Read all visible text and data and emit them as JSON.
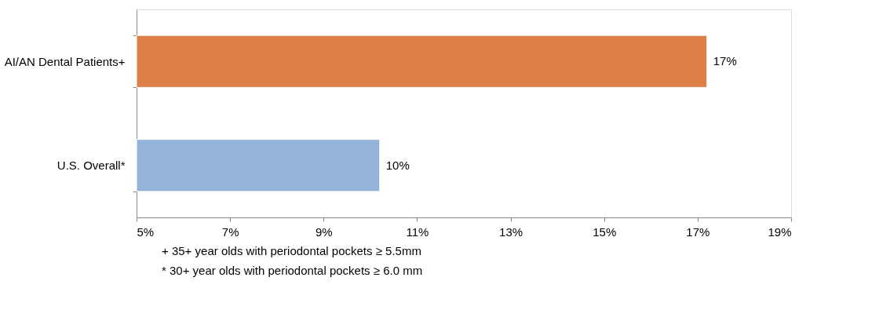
{
  "chart_data": {
    "type": "bar",
    "orientation": "horizontal",
    "categories": [
      "AI/AN Dental Patients+",
      "U.S. Overall*"
    ],
    "values": [
      17.2,
      10.2
    ],
    "colors": [
      "#dd8047",
      "#95b3d7"
    ],
    "value_labels": [
      "17%",
      "10%"
    ],
    "xlim": [
      5,
      19
    ],
    "xticks": [
      {
        "value": 5,
        "label": "5%"
      },
      {
        "value": 7,
        "label": "7%"
      },
      {
        "value": 9,
        "label": "9%"
      },
      {
        "value": 11,
        "label": "11%"
      },
      {
        "value": 13,
        "label": "13%"
      },
      {
        "value": 15,
        "label": "15%"
      },
      {
        "value": 17,
        "label": "17%"
      },
      {
        "value": 19,
        "label": "19%"
      }
    ],
    "grid": false,
    "annotations": [
      "+    35+ year olds with periodontal pockets ≥ 5.5mm",
      "*    30+ year olds with periodontal pockets ≥ 6.0 mm"
    ]
  }
}
